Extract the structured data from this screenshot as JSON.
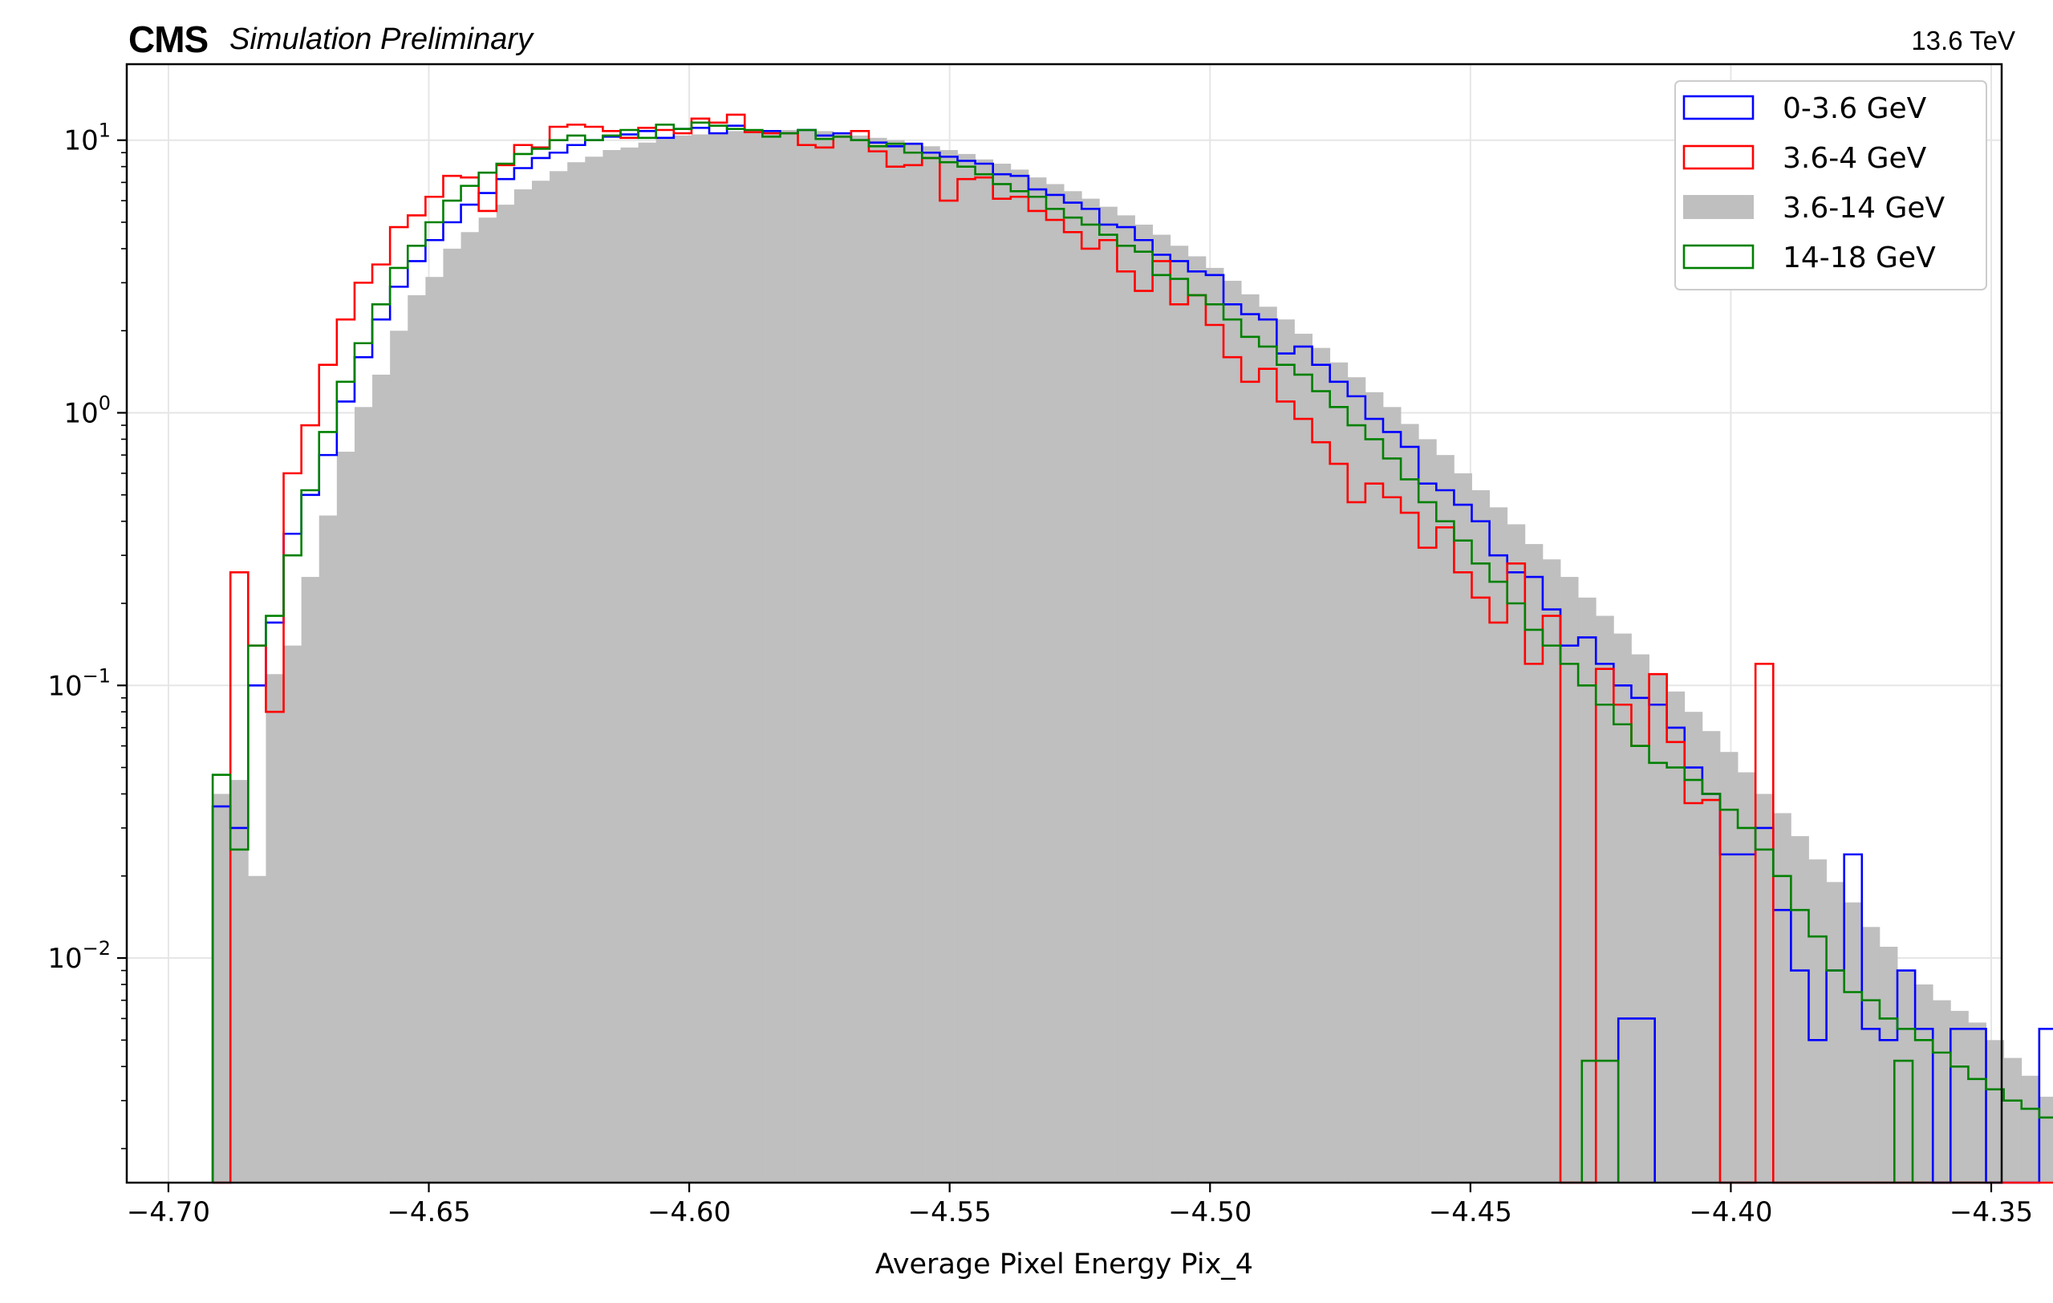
{
  "header": {
    "experiment": "CMS",
    "status": "Simulation Preliminary",
    "energy": "13.6 TeV"
  },
  "chart_data": {
    "type": "histogram",
    "xlabel": "Average Pixel Energy Pix_4",
    "ylabel": "",
    "yscale": "log",
    "xlim": [
      -4.708,
      -4.348
    ],
    "ylim": [
      0.0015,
      19
    ],
    "x_ticks": [
      -4.7,
      -4.65,
      -4.6,
      -4.55,
      -4.5,
      -4.45,
      -4.4,
      -4.35
    ],
    "x_tick_labels": [
      "−4.70",
      "−4.65",
      "−4.60",
      "−4.55",
      "−4.50",
      "−4.45",
      "−4.40",
      "−4.35"
    ],
    "y_ticks": [
      {
        "value": 10,
        "base": "10",
        "exp": "1"
      },
      {
        "value": 1,
        "base": "10",
        "exp": "0"
      },
      {
        "value": 0.1,
        "base": "10",
        "exp": "−1"
      },
      {
        "value": 0.01,
        "base": "10",
        "exp": "−2"
      }
    ],
    "grid": true,
    "legend_position": "top-right",
    "bins": {
      "start": -4.6915,
      "width": 0.003405
    },
    "baseline": 0.0015,
    "series": [
      {
        "name": "3.6-14 GeV",
        "style": "filled",
        "color": "#bfbfbf",
        "values": [
          0.04,
          0.045,
          0.02,
          0.11,
          0.14,
          0.25,
          0.42,
          0.72,
          1.05,
          1.38,
          2.0,
          2.7,
          3.15,
          4.0,
          4.6,
          5.2,
          5.8,
          6.6,
          7.1,
          7.7,
          8.3,
          8.7,
          9.2,
          9.4,
          9.8,
          10.1,
          10.4,
          10.5,
          10.6,
          10.8,
          10.8,
          10.9,
          10.9,
          10.9,
          10.8,
          10.6,
          10.4,
          10.2,
          10.0,
          9.8,
          9.5,
          9.2,
          8.9,
          8.5,
          8.2,
          7.8,
          7.3,
          6.9,
          6.5,
          6.1,
          5.7,
          5.3,
          4.9,
          4.5,
          4.1,
          3.75,
          3.4,
          3.05,
          2.72,
          2.45,
          2.2,
          1.95,
          1.73,
          1.53,
          1.35,
          1.19,
          1.05,
          0.91,
          0.8,
          0.7,
          0.6,
          0.52,
          0.45,
          0.39,
          0.33,
          0.29,
          0.25,
          0.21,
          0.18,
          0.155,
          0.13,
          0.11,
          0.095,
          0.08,
          0.068,
          0.057,
          0.048,
          0.04,
          0.034,
          0.028,
          0.023,
          0.019,
          0.016,
          0.013,
          0.011,
          0.009,
          0.008,
          0.007,
          0.0064,
          0.0058,
          0.005,
          0.0043,
          0.0037,
          0.0031,
          0.0026,
          0.0022,
          0.0022,
          0.0022
        ]
      },
      {
        "name": "0-3.6 GeV",
        "style": "step",
        "color": "#0000ff",
        "values": [
          0.036,
          0.03,
          0.1,
          0.17,
          0.36,
          0.5,
          0.7,
          1.1,
          1.6,
          2.2,
          2.9,
          3.6,
          4.3,
          5.0,
          5.8,
          6.4,
          7.2,
          7.9,
          8.6,
          9.0,
          9.6,
          10.0,
          10.3,
          10.5,
          10.8,
          10.2,
          11.0,
          11.1,
          10.6,
          11.3,
          10.7,
          10.8,
          10.6,
          10.9,
          10.4,
          10.6,
          10.0,
          9.8,
          9.5,
          9.7,
          9.0,
          8.7,
          8.4,
          8.2,
          7.5,
          7.4,
          6.6,
          6.3,
          5.9,
          5.6,
          4.9,
          4.8,
          4.3,
          3.8,
          3.6,
          3.3,
          3.2,
          2.5,
          2.3,
          2.2,
          1.65,
          1.75,
          1.5,
          1.3,
          1.15,
          0.95,
          0.85,
          0.75,
          0.55,
          0.52,
          0.46,
          0.4,
          0.3,
          0.26,
          0.25,
          0.19,
          0.14,
          0.15,
          0.12,
          0.1,
          0.09,
          0.085,
          0.07,
          0.05,
          0.04,
          0.024,
          0.024,
          0.03,
          0.015,
          0.009,
          0.005,
          0.009,
          0.024,
          0.0055,
          0.005,
          0.009,
          0.0055,
          0.0015,
          0.0055,
          0.0055,
          0.0015,
          0.0015,
          0.0015,
          0.0055,
          0.0055,
          0.0015,
          0.0015,
          0.0015
        ]
      },
      {
        "name": "3.6-4 GeV",
        "style": "step",
        "color": "#ff0000",
        "values": [
          0.0015,
          0.26,
          0.14,
          0.08,
          0.6,
          0.9,
          1.5,
          2.2,
          3.0,
          3.5,
          4.8,
          5.3,
          6.2,
          7.4,
          7.3,
          5.5,
          8.1,
          9.6,
          9.4,
          11.2,
          11.4,
          11.2,
          10.8,
          10.2,
          11.1,
          10.9,
          10.6,
          12.0,
          11.6,
          12.4,
          10.7,
          10.6,
          10.6,
          9.6,
          9.4,
          10.3,
          10.8,
          9.1,
          8.0,
          8.1,
          8.6,
          6.0,
          7.2,
          7.3,
          6.1,
          6.2,
          5.5,
          5.1,
          4.6,
          4.0,
          4.3,
          3.3,
          2.8,
          3.6,
          2.5,
          2.7,
          2.1,
          1.6,
          1.3,
          1.45,
          1.1,
          0.95,
          0.78,
          0.65,
          0.47,
          0.55,
          0.49,
          0.43,
          0.32,
          0.38,
          0.26,
          0.21,
          0.17,
          0.28,
          0.12,
          0.18,
          0.0015,
          0.0015,
          0.115,
          0.085,
          0.06,
          0.11,
          0.062,
          0.037,
          0.038,
          0.0015,
          0.0015,
          0.12,
          0.0015,
          0.0015,
          0.0015,
          0.0015,
          0.0015,
          0.0015,
          0.0015,
          0.0015,
          0.0015,
          0.0015,
          0.0015,
          0.0015,
          0.0015,
          0.0015,
          0.0015,
          0.0015,
          0.0015,
          0.0015,
          0.0015,
          0.0015
        ]
      },
      {
        "name": "14-18 GeV",
        "style": "step",
        "color": "#008000",
        "values": [
          0.047,
          0.025,
          0.14,
          0.18,
          0.3,
          0.52,
          0.85,
          1.3,
          1.8,
          2.5,
          3.4,
          4.1,
          5.0,
          6.0,
          6.8,
          7.6,
          8.2,
          8.9,
          9.3,
          10.0,
          10.4,
          10.0,
          10.4,
          10.9,
          10.2,
          11.4,
          11.0,
          11.6,
          11.3,
          11.0,
          10.9,
          10.3,
          10.6,
          10.9,
          10.1,
          10.3,
          10.0,
          9.5,
          9.7,
          9.0,
          8.6,
          8.3,
          8.0,
          7.5,
          6.9,
          6.5,
          6.2,
          5.6,
          5.2,
          4.9,
          4.5,
          4.1,
          3.9,
          3.2,
          3.1,
          2.7,
          2.5,
          2.2,
          1.9,
          1.75,
          1.5,
          1.38,
          1.2,
          1.05,
          0.9,
          0.8,
          0.68,
          0.57,
          0.47,
          0.4,
          0.34,
          0.28,
          0.24,
          0.2,
          0.16,
          0.14,
          0.12,
          0.1,
          0.085,
          0.072,
          0.06,
          0.052,
          0.05,
          0.045,
          0.04,
          0.035,
          0.03,
          0.025,
          0.02,
          0.015,
          0.012,
          0.009,
          0.0075,
          0.007,
          0.006,
          0.0055,
          0.005,
          0.0045,
          0.004,
          0.0036,
          0.0033,
          0.003,
          0.0028,
          0.0026,
          0.0025,
          0.0024,
          0.0022,
          0.002
        ]
      }
    ],
    "extra_steps": [
      {
        "series": "0-3.6 GeV",
        "x0": -4.4216,
        "x1": -4.4146,
        "y": 0.006
      },
      {
        "series": "14-18 GeV",
        "x0": -4.4286,
        "x1": -4.4216,
        "y": 0.0042
      },
      {
        "series": "14-18 GeV",
        "x0": -4.3686,
        "x1": -4.3651,
        "y": 0.0042
      }
    ]
  }
}
